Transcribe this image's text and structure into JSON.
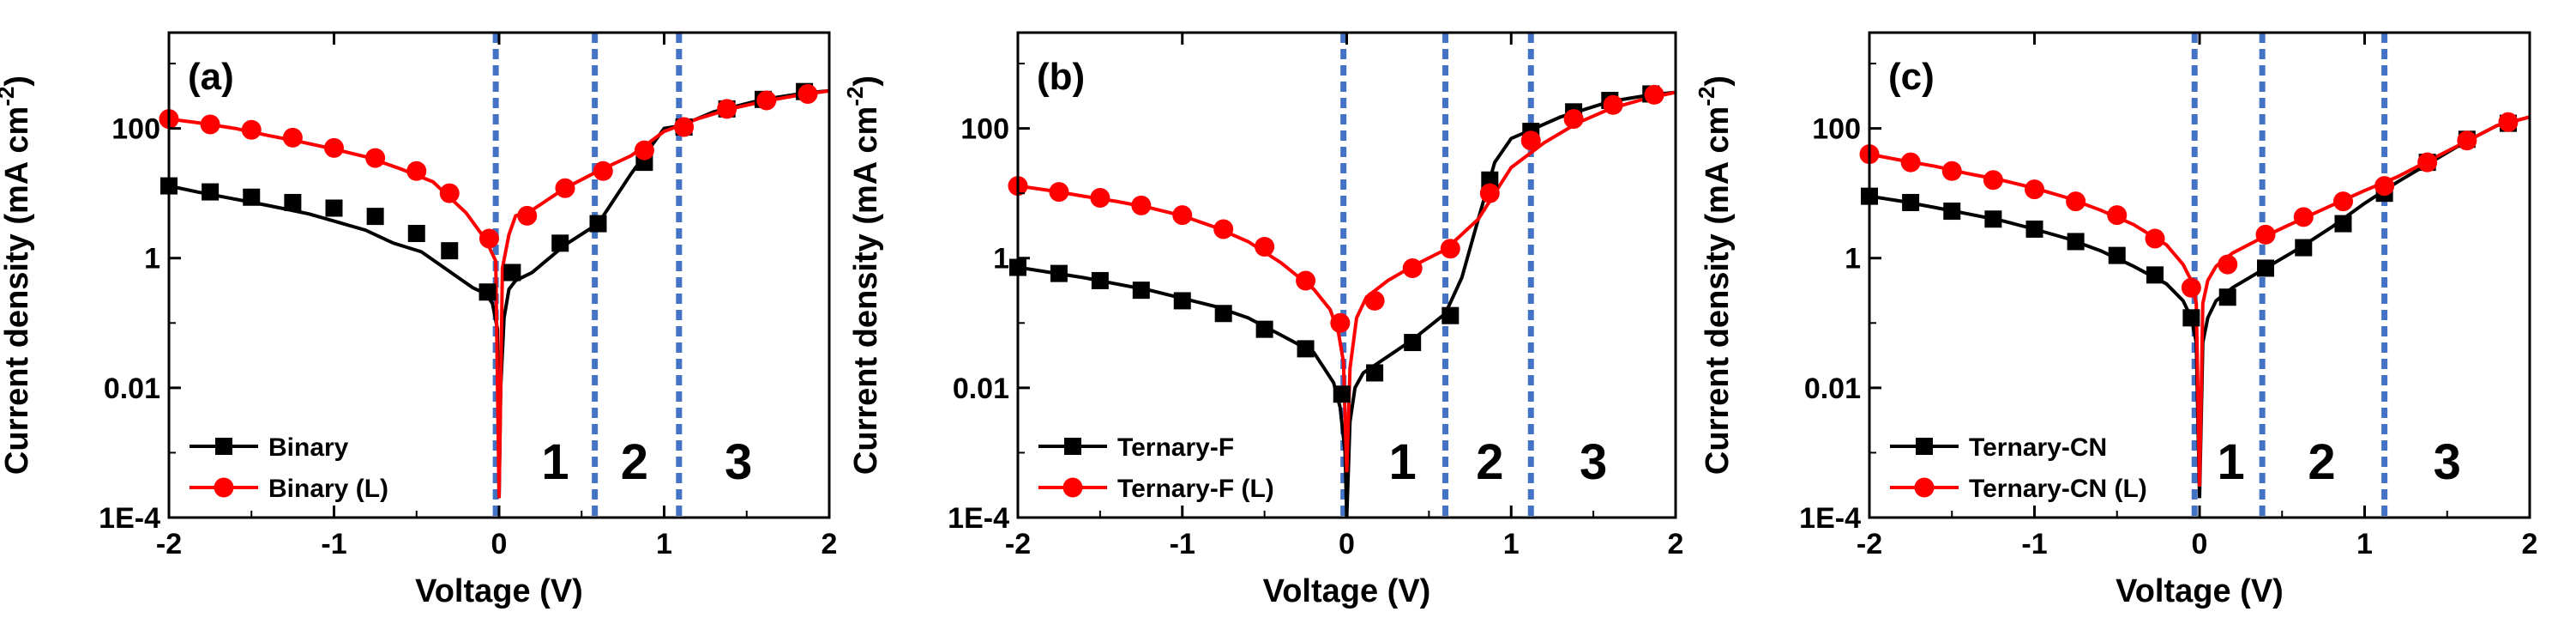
{
  "figure": {
    "colors": {
      "dark_series": "#000000",
      "light_series": "#ff0000",
      "region_divider": "#4472c4"
    }
  },
  "chart_data": [
    {
      "type": "line",
      "panel_label": "(a)",
      "xlabel": "Voltage (V)",
      "ylabel": "Current density (mA cm-2)",
      "ylabel_parts": {
        "main": "Current density (mA cm",
        "sup": "-2",
        "close": ")"
      },
      "x_scale": "linear",
      "y_scale": "log",
      "xlim": [
        -2,
        2
      ],
      "ylim": [
        0.0001,
        3000
      ],
      "x_ticks": [
        -2,
        -1,
        0,
        1,
        2
      ],
      "x_tick_labels": [
        "-2",
        "-1",
        "0",
        "1",
        "2"
      ],
      "y_ticks": [
        0.0001,
        0.01,
        1,
        100
      ],
      "y_tick_labels": [
        "1E-4",
        "0.01",
        "1",
        "100"
      ],
      "grid": false,
      "legend_position": "bottom-left",
      "dividers": [
        -0.02,
        0.58,
        1.09
      ],
      "regions": [
        {
          "label": "1",
          "x": 0.34
        },
        {
          "label": "2",
          "x": 0.82
        },
        {
          "label": "3",
          "x": 1.45
        }
      ],
      "series": [
        {
          "name": "Binary",
          "color": "#000000",
          "marker": "square",
          "x": [
            -2.0,
            -1.83,
            -1.66,
            -1.49,
            -1.32,
            -1.15,
            -0.98,
            -0.81,
            -0.64,
            -0.47,
            -0.3,
            -0.16,
            -0.08,
            -0.04,
            -0.01,
            0.0,
            0.01,
            0.03,
            0.06,
            0.1,
            0.2,
            0.4,
            0.6,
            0.8,
            1.0,
            1.1,
            1.3,
            1.6,
            1.85,
            2.0
          ],
          "y": [
            13,
            10.5,
            8.7,
            7.2,
            5.9,
            4.8,
            3.6,
            2.7,
            1.7,
            1.25,
            0.62,
            0.35,
            0.28,
            0.2,
            0.08,
            0.0002,
            0.01,
            0.12,
            0.33,
            0.45,
            0.6,
            1.6,
            3.4,
            20,
            100,
            110,
            180,
            280,
            350,
            380
          ],
          "markers_x": [
            -2.0,
            -1.75,
            -1.5,
            -1.25,
            -1.0,
            -0.75,
            -0.5,
            -0.3,
            -0.07,
            0.08,
            0.37,
            0.6,
            0.88,
            1.12,
            1.38,
            1.6,
            1.85
          ],
          "markers_y": [
            13,
            10.5,
            8.7,
            7.2,
            5.9,
            4.4,
            2.4,
            1.3,
            0.3,
            0.6,
            1.7,
            3.4,
            30,
            105,
            200,
            280,
            370
          ]
        },
        {
          "name": "Binary (L)",
          "color": "#ff0000",
          "marker": "circle",
          "x": [
            -2.0,
            -1.8,
            -1.6,
            -1.4,
            -1.2,
            -1.0,
            -0.8,
            -0.6,
            -0.4,
            -0.2,
            -0.08,
            -0.02,
            0.0,
            0.02,
            0.06,
            0.1,
            0.2,
            0.4,
            0.6,
            0.8,
            1.0,
            1.2,
            1.4,
            1.6,
            1.8,
            2.0
          ],
          "y": [
            140,
            120,
            100,
            78,
            62,
            48,
            36,
            24,
            15,
            5,
            1.9,
            0.9,
            0.0002,
            0.7,
            2.3,
            4.5,
            5.5,
            12,
            22,
            38,
            90,
            140,
            200,
            260,
            320,
            380
          ],
          "markers_x": [
            -2.0,
            -1.75,
            -1.5,
            -1.25,
            -1.0,
            -0.75,
            -0.5,
            -0.3,
            -0.06,
            0.17,
            0.4,
            0.63,
            0.88,
            1.12,
            1.38,
            1.62,
            1.87
          ],
          "markers_y": [
            140,
            115,
            95,
            72,
            50,
            35,
            22,
            10,
            2.0,
            4.5,
            12,
            22,
            46,
            105,
            200,
            270,
            340
          ]
        }
      ]
    },
    {
      "type": "line",
      "panel_label": "(b)",
      "xlabel": "Voltage (V)",
      "ylabel": "Current density (mA cm-2)",
      "ylabel_parts": {
        "main": "Current density (mA cm",
        "sup": "-2",
        "close": ")"
      },
      "x_scale": "linear",
      "y_scale": "log",
      "xlim": [
        -2,
        2
      ],
      "ylim": [
        0.0001,
        3000
      ],
      "x_ticks": [
        -2,
        -1,
        0,
        1,
        2
      ],
      "x_tick_labels": [
        "-2",
        "-1",
        "0",
        "1",
        "2"
      ],
      "y_ticks": [
        0.0001,
        0.01,
        1,
        100
      ],
      "y_tick_labels": [
        "1E-4",
        "0.01",
        "1",
        "100"
      ],
      "grid": false,
      "legend_position": "bottom-left",
      "dividers": [
        -0.02,
        0.6,
        1.12
      ],
      "regions": [
        {
          "label": "1",
          "x": 0.34
        },
        {
          "label": "2",
          "x": 0.87
        },
        {
          "label": "3",
          "x": 1.5
        }
      ],
      "series": [
        {
          "name": "Ternary-F",
          "color": "#000000",
          "marker": "square",
          "x": [
            -2.0,
            -1.8,
            -1.6,
            -1.4,
            -1.2,
            -1.0,
            -0.8,
            -0.6,
            -0.4,
            -0.2,
            -0.08,
            -0.04,
            -0.01,
            0.0,
            0.02,
            0.05,
            0.1,
            0.2,
            0.4,
            0.6,
            0.7,
            0.8,
            0.9,
            1.0,
            1.1,
            1.3,
            1.6,
            1.85,
            2.0
          ],
          "y": [
            0.72,
            0.6,
            0.5,
            0.4,
            0.32,
            0.24,
            0.18,
            0.12,
            0.065,
            0.035,
            0.012,
            0.005,
            0.001,
            0.0001,
            0.003,
            0.01,
            0.017,
            0.025,
            0.055,
            0.14,
            0.5,
            4,
            30,
            70,
            90,
            150,
            260,
            330,
            360
          ],
          "markers_x": [
            -2.0,
            -1.75,
            -1.5,
            -1.25,
            -1.0,
            -0.75,
            -0.5,
            -0.25,
            -0.03,
            0.17,
            0.4,
            0.63,
            0.87,
            1.12,
            1.38,
            1.6,
            1.85
          ],
          "markers_y": [
            0.72,
            0.58,
            0.45,
            0.32,
            0.22,
            0.14,
            0.08,
            0.04,
            0.008,
            0.017,
            0.05,
            0.13,
            16,
            90,
            180,
            270,
            340
          ]
        },
        {
          "name": "Ternary-F (L)",
          "color": "#ff0000",
          "marker": "circle",
          "x": [
            -2.0,
            -1.8,
            -1.6,
            -1.4,
            -1.2,
            -1.0,
            -0.8,
            -0.6,
            -0.4,
            -0.2,
            -0.1,
            -0.05,
            -0.02,
            0.0,
            0.02,
            0.06,
            0.12,
            0.25,
            0.4,
            0.6,
            0.8,
            1.0,
            1.2,
            1.4,
            1.6,
            1.8,
            2.0
          ],
          "y": [
            13,
            11,
            9,
            7.5,
            6,
            4.5,
            3.0,
            1.8,
            0.85,
            0.33,
            0.16,
            0.07,
            0.025,
            0.0005,
            0.02,
            0.12,
            0.25,
            0.45,
            0.75,
            1.35,
            4,
            25,
            60,
            120,
            200,
            280,
            360
          ],
          "markers_x": [
            -2.0,
            -1.75,
            -1.5,
            -1.25,
            -1.0,
            -0.75,
            -0.5,
            -0.25,
            -0.04,
            0.17,
            0.4,
            0.63,
            0.87,
            1.12,
            1.38,
            1.62,
            1.87
          ],
          "markers_y": [
            13,
            10.5,
            8.5,
            6.5,
            4.6,
            2.8,
            1.5,
            0.45,
            0.1,
            0.22,
            0.7,
            1.4,
            10,
            65,
            140,
            230,
            330
          ]
        }
      ]
    },
    {
      "type": "line",
      "panel_label": "(c)",
      "xlabel": "Voltage (V)",
      "ylabel": "Current density (mA cm-2)",
      "ylabel_parts": {
        "main": "Current density (mA cm",
        "sup": "-2",
        "close": ")"
      },
      "x_scale": "linear",
      "y_scale": "log",
      "xlim": [
        -2,
        2
      ],
      "ylim": [
        0.0001,
        3000
      ],
      "x_ticks": [
        -2,
        -1,
        0,
        1,
        2
      ],
      "x_tick_labels": [
        "-2",
        "-1",
        "0",
        "1",
        "2"
      ],
      "y_ticks": [
        0.0001,
        0.01,
        1,
        100
      ],
      "y_tick_labels": [
        "1E-4",
        "0.01",
        "1",
        "100"
      ],
      "grid": false,
      "legend_position": "bottom-left",
      "dividers": [
        -0.03,
        0.38,
        1.12
      ],
      "regions": [
        {
          "label": "1",
          "x": 0.19
        },
        {
          "label": "2",
          "x": 0.74
        },
        {
          "label": "3",
          "x": 1.5
        }
      ],
      "series": [
        {
          "name": "Ternary-CN",
          "color": "#000000",
          "marker": "square",
          "x": [
            -2.0,
            -1.8,
            -1.6,
            -1.4,
            -1.2,
            -1.0,
            -0.8,
            -0.6,
            -0.4,
            -0.2,
            -0.1,
            -0.05,
            -0.02,
            0.0,
            0.02,
            0.05,
            0.1,
            0.2,
            0.4,
            0.6,
            0.8,
            1.0,
            1.2,
            1.4,
            1.6,
            1.8,
            2.0
          ],
          "y": [
            9,
            7.5,
            6,
            4.8,
            3.8,
            2.8,
            2.0,
            1.3,
            0.75,
            0.4,
            0.22,
            0.12,
            0.05,
            0.0002,
            0.05,
            0.12,
            0.22,
            0.35,
            0.7,
            1.4,
            3,
            7,
            15,
            30,
            60,
            110,
            150
          ],
          "markers_x": [
            -2.0,
            -1.75,
            -1.5,
            -1.25,
            -1.0,
            -0.75,
            -0.5,
            -0.27,
            -0.05,
            0.17,
            0.4,
            0.63,
            0.87,
            1.12,
            1.38,
            1.62,
            1.87
          ],
          "markers_y": [
            9,
            7.2,
            5.3,
            4.0,
            2.8,
            1.8,
            1.1,
            0.55,
            0.12,
            0.25,
            0.7,
            1.45,
            3.4,
            10,
            30,
            68,
            120
          ]
        },
        {
          "name": "Ternary-CN (L)",
          "color": "#ff0000",
          "marker": "circle",
          "x": [
            -2.0,
            -1.8,
            -1.6,
            -1.4,
            -1.2,
            -1.0,
            -0.8,
            -0.6,
            -0.4,
            -0.2,
            -0.1,
            -0.05,
            -0.02,
            0.0,
            0.02,
            0.05,
            0.1,
            0.2,
            0.4,
            0.6,
            0.8,
            1.0,
            1.2,
            1.4,
            1.6,
            1.8,
            2.0
          ],
          "y": [
            40,
            32,
            26,
            20,
            16,
            12,
            8.5,
            5.5,
            3.3,
            1.6,
            0.8,
            0.45,
            0.2,
            0.0003,
            0.2,
            0.45,
            0.75,
            1.2,
            2.2,
            3.8,
            6.5,
            11,
            18,
            33,
            60,
            110,
            150
          ],
          "markers_x": [
            -2.0,
            -1.75,
            -1.5,
            -1.25,
            -1.0,
            -0.75,
            -0.5,
            -0.27,
            -0.05,
            0.17,
            0.4,
            0.63,
            0.87,
            1.12,
            1.38,
            1.62,
            1.87
          ],
          "markers_y": [
            40,
            30,
            22,
            16,
            11.5,
            7.5,
            4.6,
            2.0,
            0.35,
            0.8,
            2.3,
            4.3,
            7.5,
            13,
            30,
            65,
            125
          ]
        }
      ]
    }
  ]
}
